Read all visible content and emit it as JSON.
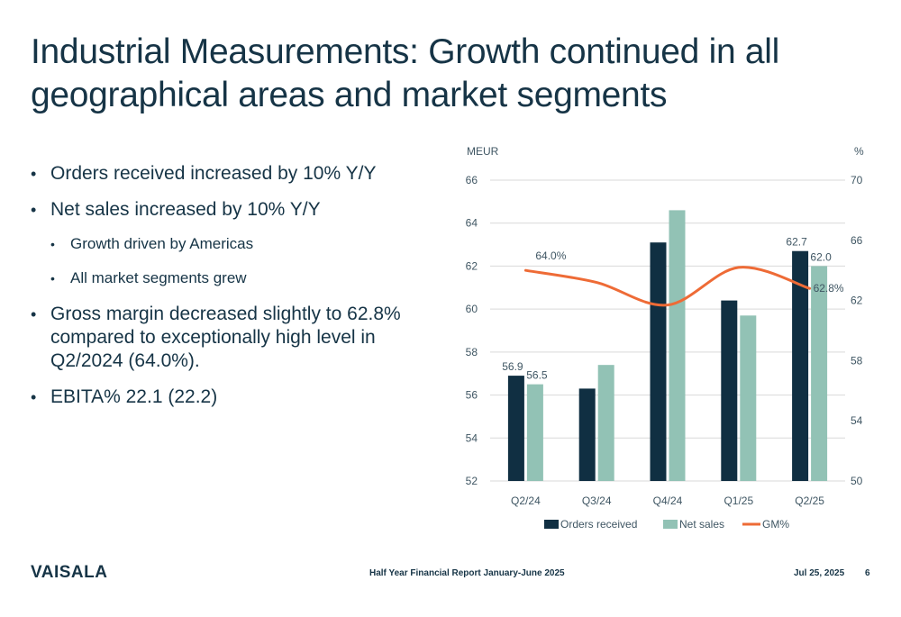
{
  "slide": {
    "title": "Industrial Measurements: Growth continued in all geographical areas and market segments",
    "bullets": [
      {
        "level": 1,
        "text": "Orders received increased by 10% Y/Y"
      },
      {
        "level": 1,
        "text": "Net sales increased by 10% Y/Y"
      },
      {
        "level": 2,
        "text": "Growth driven by Americas"
      },
      {
        "level": 2,
        "text": "All market segments grew"
      },
      {
        "level": 1,
        "text": "Gross margin decreased slightly to 62.8% compared to exceptionally high level in Q2/2024 (64.0%)."
      },
      {
        "level": 1,
        "text": "EBITA% 22.1 (22.2)"
      }
    ]
  },
  "footer": {
    "logo": "VAISALA",
    "report": "Half Year Financial Report January-June 2025",
    "date": "Jul 25, 2025",
    "page": "6"
  },
  "colors": {
    "orders": "#102f42",
    "net_sales": "#92c2b5",
    "gm": "#ee6b36",
    "text": "#163446"
  },
  "chart_data": {
    "type": "bar",
    "categories": [
      "Q2/24",
      "Q3/24",
      "Q4/24",
      "Q1/25",
      "Q2/25"
    ],
    "series": [
      {
        "name": "Orders received",
        "type": "bar",
        "axis": "left",
        "values": [
          56.9,
          56.3,
          63.1,
          60.4,
          62.7
        ],
        "labels": [
          "56.9",
          "",
          "",
          "",
          "62.7"
        ]
      },
      {
        "name": "Net sales",
        "type": "bar",
        "axis": "left",
        "values": [
          56.5,
          57.4,
          64.6,
          59.7,
          62.0
        ],
        "labels": [
          "56.5",
          "",
          "",
          "",
          "62.0"
        ]
      },
      {
        "name": "GM%",
        "type": "line",
        "axis": "right",
        "values": [
          64.0,
          63.2,
          61.7,
          64.2,
          62.8
        ],
        "labels": [
          "64.0%",
          "",
          "",
          "",
          "62.8%"
        ]
      }
    ],
    "y_left": {
      "label": "MEUR",
      "min": 52,
      "max": 66,
      "ticks": [
        52,
        54,
        56,
        58,
        60,
        62,
        64,
        66
      ]
    },
    "y_right": {
      "label": "%",
      "min": 50,
      "max": 70,
      "ticks": [
        50,
        54,
        58,
        62,
        66,
        70
      ]
    },
    "grid": true,
    "legend": "bottom"
  }
}
